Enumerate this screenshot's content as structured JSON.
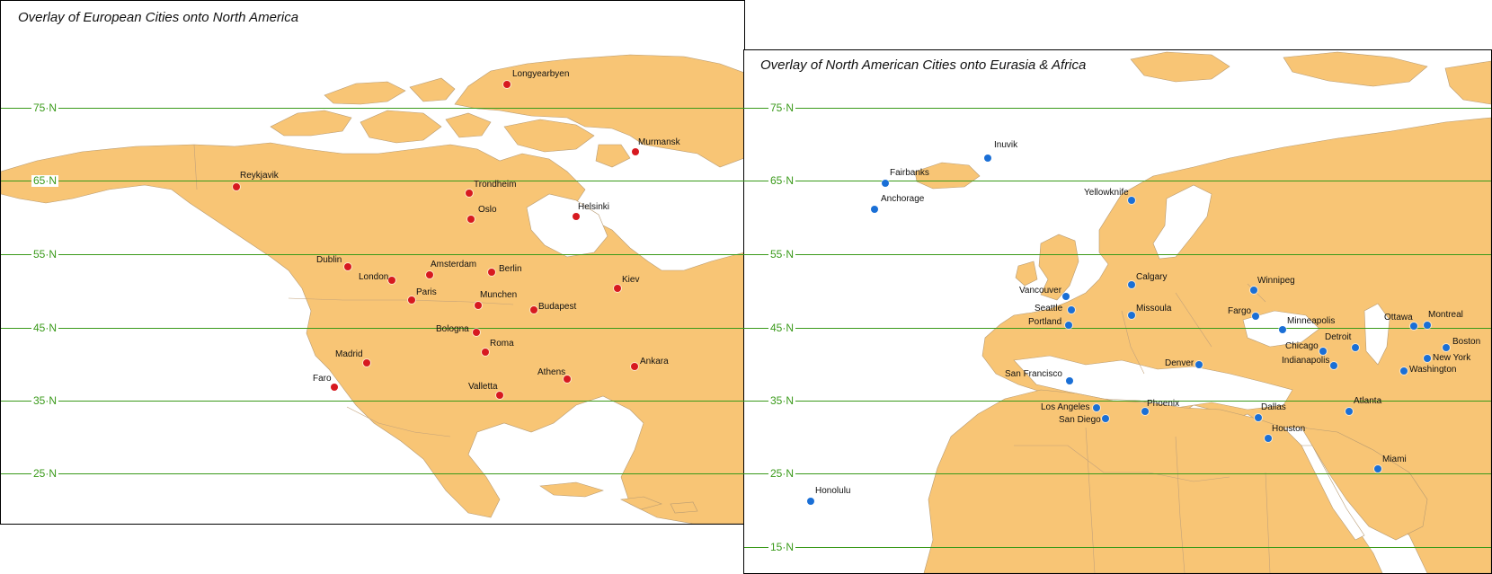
{
  "colors": {
    "land": "#f8c575",
    "grid": "#3a9a1a",
    "european_city_dot": "#d71920",
    "north_american_city_dot": "#1a6fd6"
  },
  "left_map": {
    "title": "Overlay of European Cities onto North America",
    "latitudes": [
      "75·N",
      "65·N",
      "55·N",
      "45·N",
      "35·N",
      "25·N"
    ],
    "cities": [
      "Longyearbyen",
      "Murmansk",
      "Reykjavik",
      "Trondheim",
      "Oslo",
      "Helsinki",
      "Dublin",
      "Amsterdam",
      "Berlin",
      "London",
      "Paris",
      "Kiev",
      "Munchen",
      "Budapest",
      "Bologna",
      "Roma",
      "Madrid",
      "Athens",
      "Ankara",
      "Faro",
      "Valletta"
    ]
  },
  "right_map": {
    "title": "Overlay of North American Cities onto Eurasia & Africa",
    "latitudes": [
      "75·N",
      "65·N",
      "55·N",
      "45·N",
      "35·N",
      "25·N",
      "15·N"
    ],
    "cities": [
      "Inuvik",
      "Fairbanks",
      "Anchorage",
      "Yellowknife",
      "Calgary",
      "Winnipeg",
      "Vancouver",
      "Seattle",
      "Missoula",
      "Fargo",
      "Portland",
      "Minneapolis",
      "Ottawa",
      "Montreal",
      "Detroit",
      "Chicago",
      "Boston",
      "Indianapolis",
      "New York",
      "Washington",
      "Denver",
      "San Francisco",
      "Atlanta",
      "Los Angeles",
      "Dallas",
      "San Diego",
      "Phoenix",
      "Houston",
      "Miami",
      "Honolulu"
    ]
  }
}
